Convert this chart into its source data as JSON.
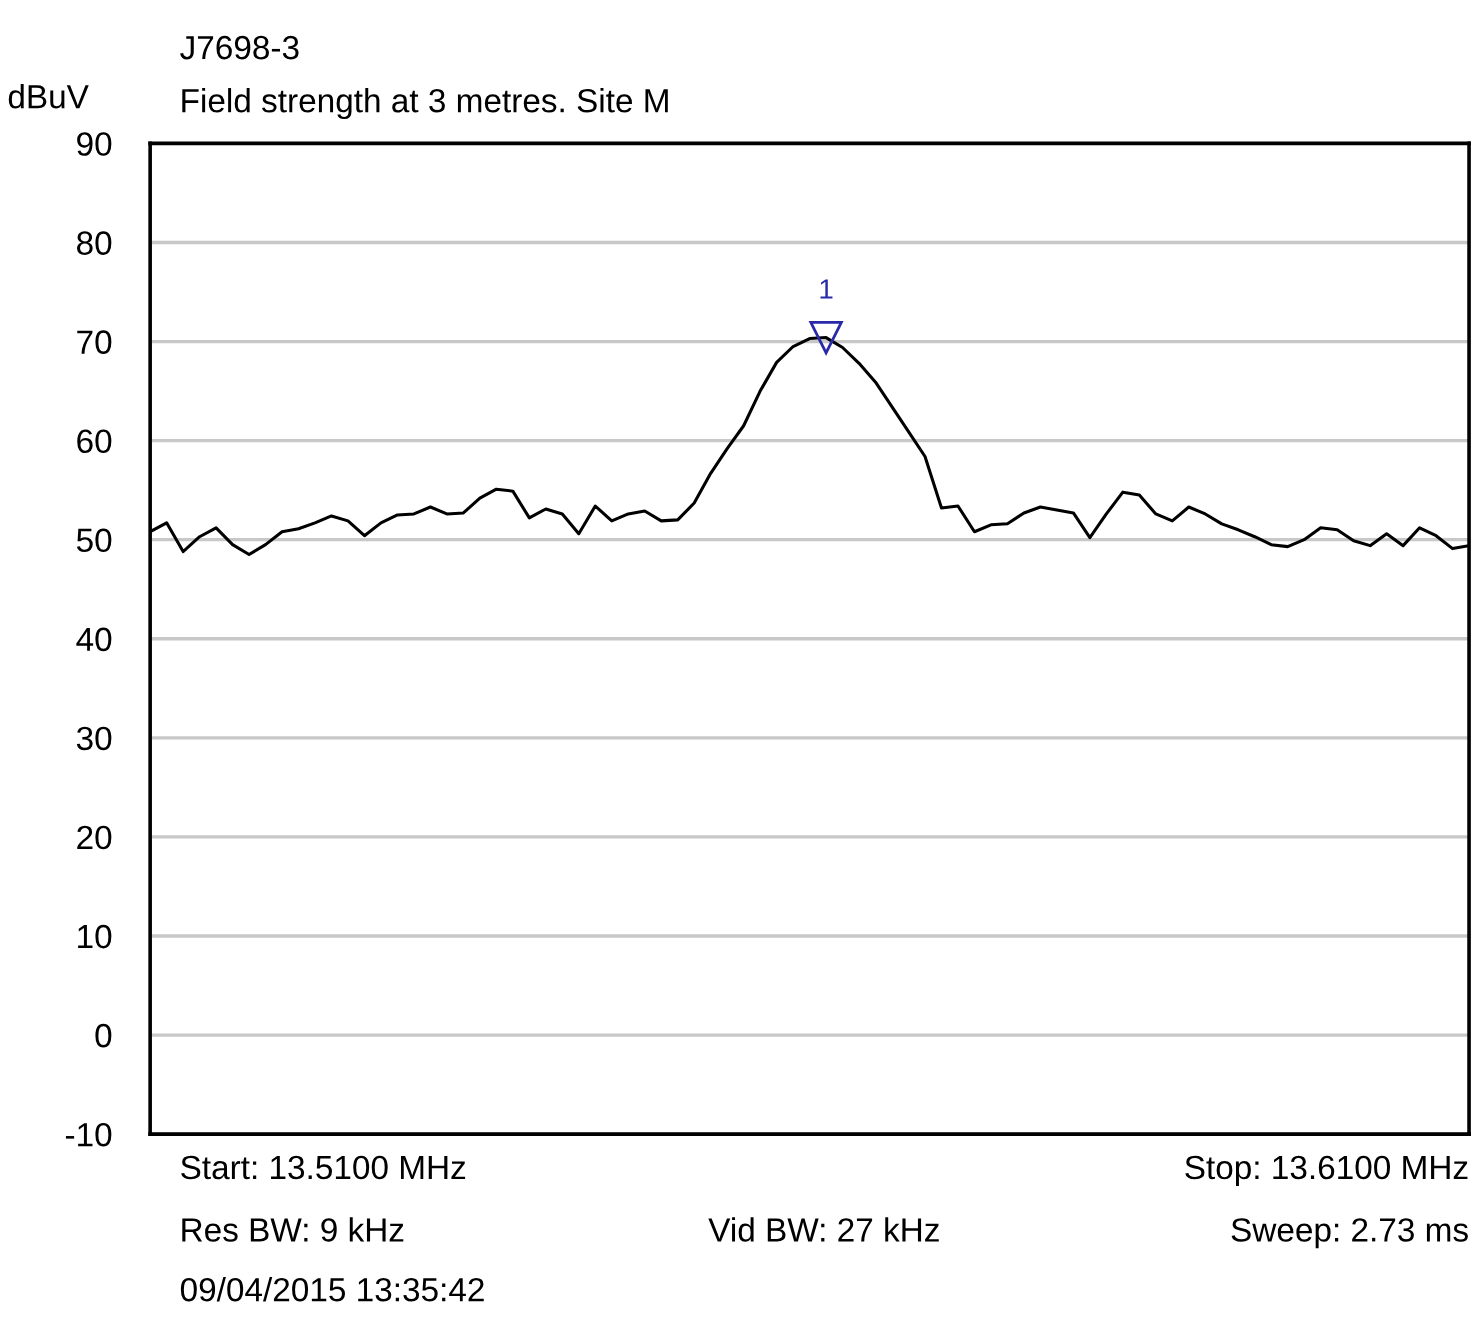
{
  "chart_data": {
    "type": "line",
    "title": "J7698-3",
    "subtitle": "Field strength at 3 metres. Site M",
    "ylabel": "dBuV",
    "categories": [
      null,
      null,
      null,
      null,
      null,
      null,
      null,
      null,
      null,
      null,
      null,
      null,
      null,
      null,
      null,
      null,
      null,
      null,
      null,
      null,
      null,
      null,
      null,
      null,
      null,
      null,
      null,
      null,
      null,
      null,
      null,
      null,
      null,
      null,
      null,
      null,
      null,
      null,
      null,
      null,
      null,
      null,
      null,
      null,
      null,
      null,
      null,
      null,
      null,
      null,
      null,
      null,
      null,
      null,
      null,
      null,
      null,
      null,
      null,
      null,
      null,
      null,
      null,
      null,
      null,
      null,
      null,
      null,
      null,
      null,
      null,
      null,
      null,
      null,
      null,
      null,
      null,
      null,
      null,
      null,
      null
    ],
    "series": [
      {
        "color": "#000000",
        "values": [
          50.8,
          51.7,
          48.8,
          50.3,
          51.2,
          49.5,
          48.5,
          49.5,
          50.8,
          51.1,
          51.7,
          52.4,
          51.9,
          50.4,
          51.7,
          52.5,
          52.6,
          53.3,
          52.6,
          52.7,
          54.2,
          55.1,
          54.9,
          52.2,
          53.1,
          52.6,
          50.6,
          53.4,
          51.9,
          52.6,
          52.9,
          51.9,
          52.0,
          53.7,
          56.7,
          59.2,
          61.5,
          65.0,
          67.9,
          69.5,
          70.3,
          70.4,
          69.4,
          67.8,
          65.9,
          63.4,
          60.9,
          58.4,
          53.2,
          53.4,
          50.8,
          51.5,
          51.6,
          52.7,
          53.3,
          53.0,
          52.7,
          50.2,
          52.6,
          54.8,
          54.5,
          52.6,
          51.9,
          53.3,
          52.6,
          51.6,
          51.0,
          50.3,
          49.5,
          49.3,
          50.0,
          51.2,
          51.0,
          49.9,
          49.4,
          50.6,
          49.4,
          51.2,
          50.4,
          49.1,
          49.4
        ]
      }
    ],
    "ylim": [
      -10,
      90
    ],
    "yticks": [
      -10,
      0,
      10,
      20,
      30,
      40,
      50,
      60,
      70,
      80,
      90
    ],
    "tick_labels": "y",
    "grid": "y",
    "legend": false,
    "marker": "none",
    "line_style": "solid",
    "annotations": [
      {
        "text": "1",
        "y": 70.4
      },
      "Start: 13.5100 MHz",
      "Res BW: 9 kHz",
      "09/04/2015 13:35:42",
      "Vid BW: 27 kHz",
      "Stop: 13.6100 MHz",
      "Sweep: 2.73 ms"
    ]
  }
}
